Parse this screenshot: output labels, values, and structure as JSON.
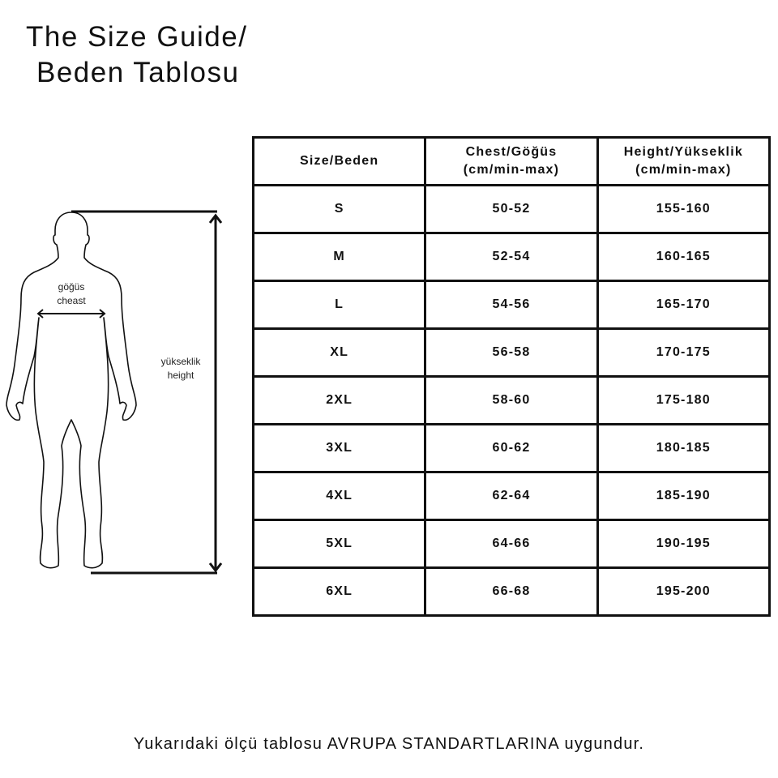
{
  "title": {
    "line1": "The Size Guide/",
    "line2": "Beden Tablosu"
  },
  "figure": {
    "chest_label_tr": "göğüs",
    "chest_label_en": "cheast",
    "height_label_tr": "yükseklik",
    "height_label_en": "height"
  },
  "table": {
    "headers": [
      {
        "line1": "Size/Beden",
        "line2": ""
      },
      {
        "line1": "Chest/Göğüs",
        "line2": "(cm/min-max)"
      },
      {
        "line1": "Height/Yükseklik",
        "line2": "(cm/min-max)"
      }
    ],
    "rows": [
      [
        "S",
        "50-52",
        "155-160"
      ],
      [
        "M",
        "52-54",
        "160-165"
      ],
      [
        "L",
        "54-56",
        "165-170"
      ],
      [
        "XL",
        "56-58",
        "170-175"
      ],
      [
        "2XL",
        "58-60",
        "175-180"
      ],
      [
        "3XL",
        "60-62",
        "180-185"
      ],
      [
        "4XL",
        "62-64",
        "185-190"
      ],
      [
        "5XL",
        "64-66",
        "190-195"
      ],
      [
        "6XL",
        "66-68",
        "195-200"
      ]
    ]
  },
  "footer": "Yukarıdaki ölçü tablosu AVRUPA STANDARTLARINA uygundur."
}
